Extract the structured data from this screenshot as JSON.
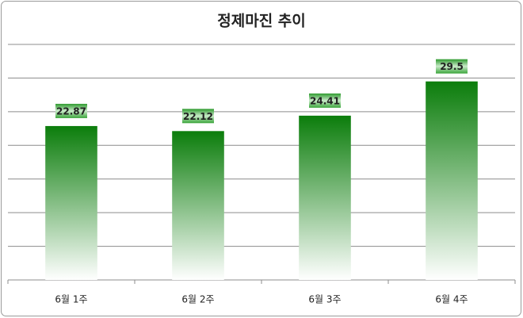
{
  "chart_data": {
    "type": "bar",
    "title": "정제마진 추이",
    "categories": [
      "6월 1주",
      "6월 2주",
      "6월 3주",
      "6월 4주"
    ],
    "values": [
      22.87,
      22.12,
      24.41,
      29.5
    ],
    "color": "#0b7d0b",
    "ylim": [
      0,
      35
    ],
    "yticks": [
      0,
      5,
      10,
      15,
      20,
      25,
      30,
      35
    ],
    "grid": true
  }
}
